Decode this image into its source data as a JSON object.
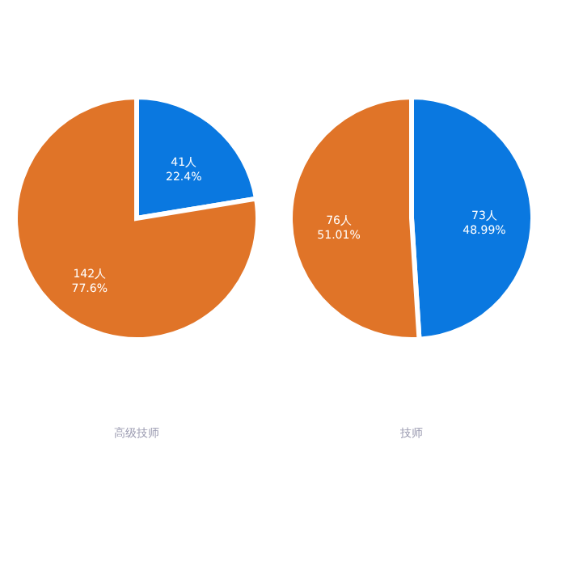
{
  "chart_data": [
    {
      "type": "pie",
      "title": "高级技师",
      "categories": [
        null,
        null
      ],
      "values": [
        41,
        142
      ],
      "colors": [
        "#0a78e0",
        "#e07428"
      ],
      "value_labels": [
        "41人\n22.4%",
        "142人\n77.6%"
      ]
    },
    {
      "type": "pie",
      "title": "技师",
      "categories": [
        null,
        null
      ],
      "values": [
        73,
        76
      ],
      "colors": [
        "#0a78e0",
        "#e07428"
      ],
      "value_labels": [
        "73人\n48.99%",
        "76人\n51.01%"
      ]
    }
  ]
}
